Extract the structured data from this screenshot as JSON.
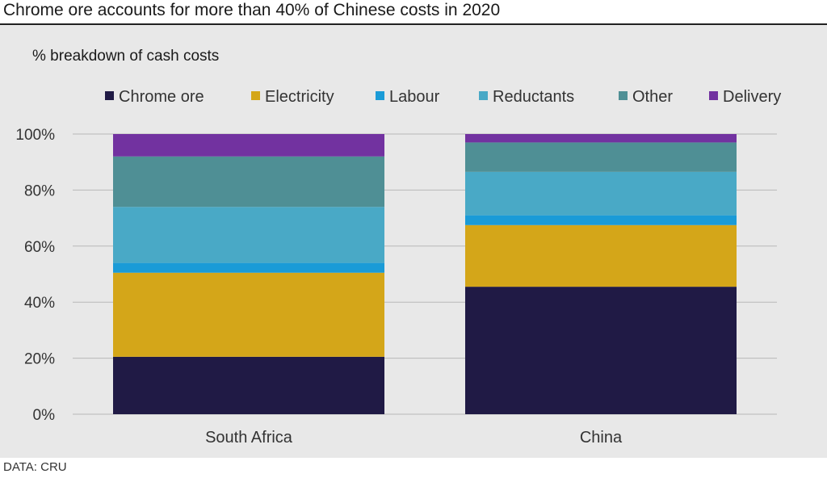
{
  "headline": "Chrome ore accounts for more than 40% of Chinese costs in 2020",
  "source": "DATA: CRU",
  "chart_data": {
    "type": "bar",
    "stacked": true,
    "title": "% breakdown of cash costs",
    "xlabel": "",
    "ylabel": "",
    "categories": [
      "South Africa",
      "China"
    ],
    "ylim": [
      0,
      100
    ],
    "yticks": [
      0,
      20,
      40,
      60,
      80,
      100
    ],
    "ytick_labels": [
      "0%",
      "20%",
      "40%",
      "60%",
      "80%",
      "100%"
    ],
    "grid": true,
    "legend": "top",
    "series": [
      {
        "name": "Chrome ore",
        "color": "#201a45",
        "values": [
          20.5,
          45.5
        ]
      },
      {
        "name": "Electricity",
        "color": "#d4a619",
        "values": [
          30,
          22
        ]
      },
      {
        "name": "Labour",
        "color": "#1a9bd7",
        "values": [
          3.5,
          3.5
        ]
      },
      {
        "name": "Reductants",
        "color": "#49a9c6",
        "values": [
          20,
          15.5
        ]
      },
      {
        "name": "Other",
        "color": "#4f8f95",
        "values": [
          18,
          10.5
        ]
      },
      {
        "name": "Delivery",
        "color": "#7232a0",
        "values": [
          8,
          3
        ]
      }
    ]
  }
}
